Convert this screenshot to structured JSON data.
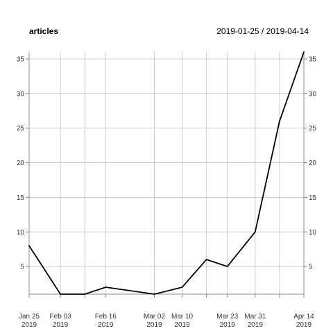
{
  "chart_data": {
    "type": "line",
    "title": "articles",
    "date_range": "2019-01-25 / 2019-04-14",
    "xlabel": "",
    "ylabel": "",
    "ylim": [
      1,
      36
    ],
    "grid": true,
    "y_ticks": [
      5,
      10,
      15,
      20,
      25,
      30,
      35
    ],
    "x_ticks": [
      {
        "date": "2019-01-25",
        "label": "Jan 25",
        "year": "2019"
      },
      {
        "date": "2019-02-03",
        "label": "Feb 03",
        "year": "2019"
      },
      {
        "date": "2019-02-16",
        "label": "Feb 16",
        "year": "2019"
      },
      {
        "date": "2019-03-02",
        "label": "Mar 02",
        "year": "2019"
      },
      {
        "date": "2019-03-10",
        "label": "Mar 10",
        "year": "2019"
      },
      {
        "date": "2019-03-23",
        "label": "Mar 23",
        "year": "2019"
      },
      {
        "date": "2019-03-31",
        "label": "Mar 31",
        "year": "2019"
      },
      {
        "date": "2019-04-14",
        "label": "Apr 14",
        "year": "2019"
      }
    ],
    "x_gridlines": [
      "2019-01-25",
      "2019-02-03",
      "2019-02-10",
      "2019-02-16",
      "2019-03-02",
      "2019-03-10",
      "2019-03-17",
      "2019-03-23",
      "2019-03-31",
      "2019-04-07",
      "2019-04-14"
    ],
    "series": [
      {
        "color": "#000000",
        "points": [
          {
            "x": "2019-01-25",
            "y": 8
          },
          {
            "x": "2019-02-03",
            "y": 1
          },
          {
            "x": "2019-02-10",
            "y": 1
          },
          {
            "x": "2019-02-16",
            "y": 2
          },
          {
            "x": "2019-03-02",
            "y": 1
          },
          {
            "x": "2019-03-10",
            "y": 2
          },
          {
            "x": "2019-03-17",
            "y": 6
          },
          {
            "x": "2019-03-23",
            "y": 5
          },
          {
            "x": "2019-03-31",
            "y": 10
          },
          {
            "x": "2019-04-07",
            "y": 26
          },
          {
            "x": "2019-04-14",
            "y": 36
          }
        ]
      }
    ]
  }
}
